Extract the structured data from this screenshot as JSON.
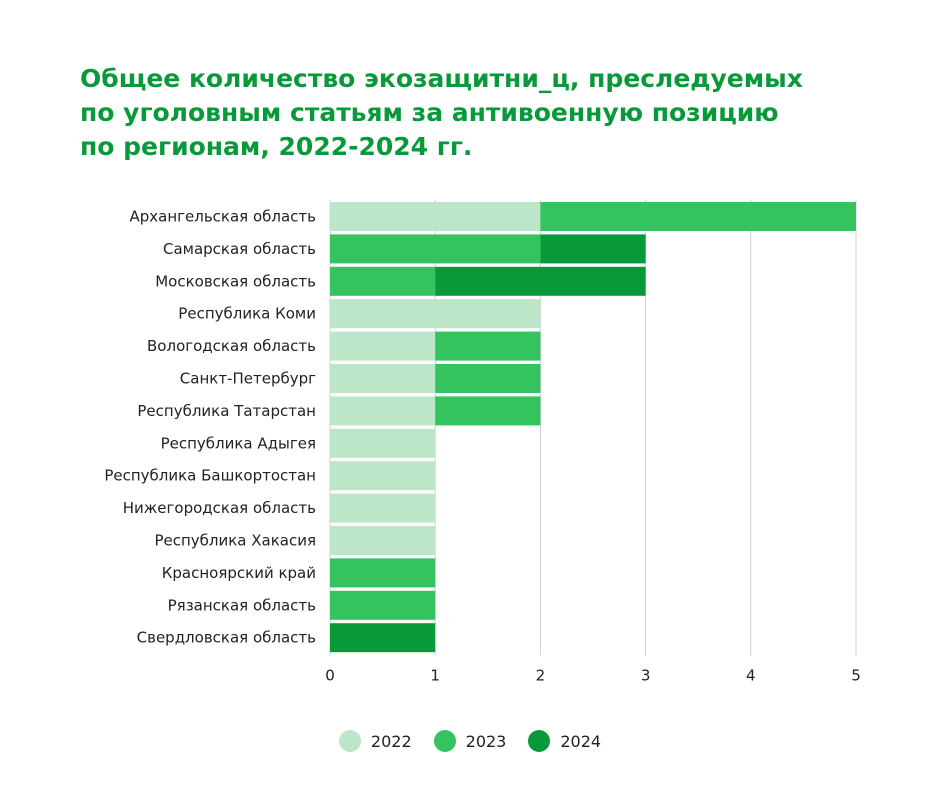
{
  "chart_data": {
    "type": "bar",
    "orientation": "horizontal",
    "stacked": true,
    "title_lines": [
      "Общее количество экозащитни_ц, преследуемых",
      "по уголовным статьям за антивоенную позицию",
      "по регионам, 2022-2024 гг."
    ],
    "categories": [
      "Архангельская область",
      "Самарская область",
      "Московская область",
      "Республика Коми",
      "Вологодская область",
      "Санкт-Петербург",
      "Республика Татарстан",
      "Республика Адыгея",
      "Республика Башкортостан",
      "Нижегородская область",
      "Республика Хакасия",
      "Красноярский край",
      "Рязанская область",
      "Свердловская область"
    ],
    "series": [
      {
        "name": "2022",
        "color": "#bde5c8",
        "values": [
          2,
          0,
          0,
          2,
          1,
          1,
          1,
          1,
          1,
          1,
          1,
          0,
          0,
          0
        ]
      },
      {
        "name": "2023",
        "color": "#34c35f",
        "values": [
          3,
          2,
          1,
          0,
          1,
          1,
          1,
          0,
          0,
          0,
          0,
          1,
          1,
          0
        ]
      },
      {
        "name": "2024",
        "color": "#089a3a",
        "values": [
          0,
          1,
          2,
          0,
          0,
          0,
          0,
          0,
          0,
          0,
          0,
          0,
          0,
          1
        ]
      }
    ],
    "xlim": [
      0,
      5
    ],
    "xticks": [
      "0",
      "1",
      "2",
      "3",
      "4",
      "5"
    ],
    "grid": "vertical",
    "legend_position": "bottom-center",
    "title_color": "#089a3a"
  }
}
